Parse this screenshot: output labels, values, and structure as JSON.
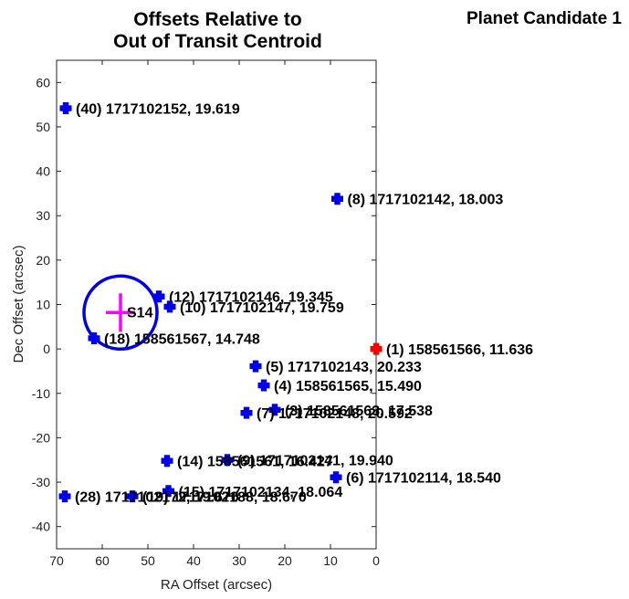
{
  "title_lines": [
    "Offsets Relative to",
    "Out of Transit Centroid"
  ],
  "candidate_label": "Planet Candidate 1",
  "colors": {
    "star": "#0000ee",
    "target": "#ff0000",
    "circle": "#0000ee",
    "centroid": "#ff00ff"
  },
  "chart_data": {
    "type": "scatter",
    "xlabel": "RA Offset (arcsec)",
    "ylabel": "Dec Offset (arcsec)",
    "xlim": [
      70,
      0
    ],
    "ylim": [
      -45,
      65
    ],
    "x_reversed": true,
    "xticks": [
      70,
      60,
      50,
      40,
      30,
      20,
      10,
      0
    ],
    "yticks": [
      -40,
      -30,
      -20,
      -10,
      0,
      10,
      20,
      30,
      40,
      50,
      60
    ],
    "points": [
      {
        "x": 68.0,
        "y": 54.2,
        "label": "(40) 1717102152, 19.619",
        "target": false
      },
      {
        "x": 8.5,
        "y": 33.8,
        "label": "(8) 1717102142, 18.003",
        "target": false
      },
      {
        "x": 47.6,
        "y": 11.8,
        "label": "(12) 1717102146, 19.345",
        "target": false
      },
      {
        "x": 45.2,
        "y": 9.5,
        "label": "(10) 1717102147, 19.759",
        "target": false
      },
      {
        "x": 61.8,
        "y": 2.4,
        "label": "(18) 158561567, 14.748",
        "target": false
      },
      {
        "x": 0.0,
        "y": 0.0,
        "label": "(1) 158561566, 11.636",
        "target": true
      },
      {
        "x": 26.4,
        "y": -3.9,
        "label": "(5) 1717102143, 20.233",
        "target": false
      },
      {
        "x": 24.6,
        "y": -8.2,
        "label": "(4) 158561565, 15.490",
        "target": false
      },
      {
        "x": 22.2,
        "y": -13.7,
        "label": "(3) 158561563, 17.538",
        "target": false
      },
      {
        "x": 28.4,
        "y": -14.4,
        "label": "(7) 1717102148, 20.592",
        "target": false
      },
      {
        "x": 32.6,
        "y": -25.0,
        "label": "(9) 1717102141, 19.940",
        "target": false
      },
      {
        "x": 45.8,
        "y": -25.2,
        "label": "(14) 158561561, 16.427",
        "target": false
      },
      {
        "x": 8.8,
        "y": -28.9,
        "label": "(6) 1717102114, 18.540",
        "target": false
      },
      {
        "x": 45.5,
        "y": -32.0,
        "label": "(15) 1717102134, 18.064",
        "target": false
      },
      {
        "x": 53.4,
        "y": -33.2,
        "label": "(19) 1717102188, 18.670",
        "target": false
      },
      {
        "x": 68.2,
        "y": -33.2,
        "label": "(28) 1717102172, 19.670",
        "target": false
      }
    ],
    "centroid": {
      "x": 56.0,
      "y": 8.2,
      "label": "S14",
      "radius_arcsec": 8.0
    }
  }
}
